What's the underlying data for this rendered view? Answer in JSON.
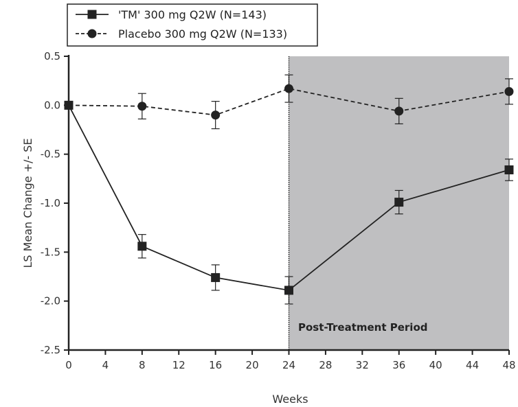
{
  "chart_data": {
    "type": "line",
    "title": "",
    "xlabel": "Weeks",
    "ylabel": "LS Mean Change +/- SE",
    "xlim": [
      0,
      48
    ],
    "ylim": [
      -2.5,
      0.5
    ],
    "x_ticks": [
      0,
      4,
      8,
      12,
      16,
      20,
      24,
      28,
      32,
      36,
      40,
      44,
      48
    ],
    "y_ticks": [
      0.5,
      0.0,
      -0.5,
      -1.0,
      -1.5,
      -2.0,
      -2.5
    ],
    "x_tick_labels": [
      "0",
      "4",
      "8",
      "12",
      "16",
      "20",
      "24",
      "28",
      "32",
      "36",
      "40",
      "44",
      "48"
    ],
    "y_tick_labels": [
      "0.5",
      "0.0",
      "-0.5",
      "-1.0",
      "-1.5",
      "-2.0",
      "-2.5"
    ],
    "grid": false,
    "legend_position": "top-left",
    "shaded_region": {
      "x_start": 24,
      "x_end": 48,
      "label": "Post-Treatment Period",
      "color": "#bfbfc1"
    },
    "vertical_line_x": 24,
    "series": [
      {
        "name": "'TM' 300 mg Q2W (N=143)",
        "marker": "square",
        "line_style": "solid",
        "color": "#222222",
        "x": [
          0,
          8,
          16,
          24,
          36,
          48
        ],
        "y": [
          0.0,
          -1.44,
          -1.76,
          -1.89,
          -0.99,
          -0.66
        ],
        "se": [
          0.0,
          0.12,
          0.13,
          0.14,
          0.12,
          0.11
        ]
      },
      {
        "name": "Placebo 300 mg Q2W (N=133)",
        "marker": "circle",
        "line_style": "dashed",
        "color": "#222222",
        "x": [
          0,
          8,
          16,
          24,
          36,
          48
        ],
        "y": [
          0.0,
          -0.01,
          -0.1,
          0.17,
          -0.06,
          0.14
        ],
        "se": [
          0.0,
          0.13,
          0.14,
          0.14,
          0.13,
          0.13
        ]
      }
    ]
  }
}
